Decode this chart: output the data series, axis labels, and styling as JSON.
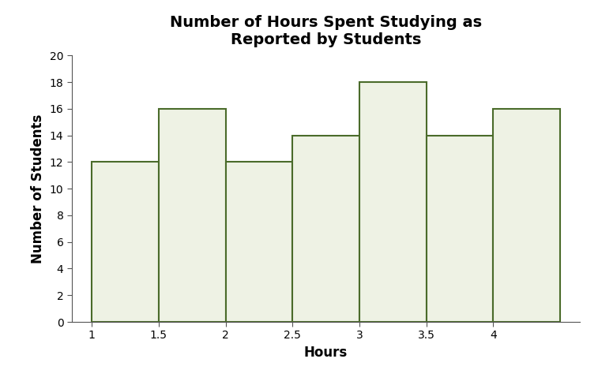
{
  "title": "Number of Hours Spent Studying as\nReported by Students",
  "xlabel": "Hours",
  "ylabel": "Number of Students",
  "bar_centers": [
    1.25,
    1.75,
    2.25,
    2.75,
    3.25,
    3.75,
    4.25
  ],
  "bar_heights": [
    12,
    16,
    12,
    14,
    18,
    14,
    16
  ],
  "bar_width": 0.5,
  "bar_facecolor": "#eef2e4",
  "bar_edgecolor": "#4a6b2a",
  "bar_linewidth": 1.5,
  "xlim": [
    0.85,
    4.65
  ],
  "ylim": [
    0,
    20
  ],
  "xticks": [
    1,
    1.5,
    2,
    2.5,
    3,
    3.5,
    4
  ],
  "yticks": [
    0,
    2,
    4,
    6,
    8,
    10,
    12,
    14,
    16,
    18,
    20
  ],
  "title_fontsize": 14,
  "axis_label_fontsize": 12,
  "tick_fontsize": 10,
  "title_fontweight": "bold",
  "axis_label_fontweight": "bold",
  "background_color": "#ffffff"
}
